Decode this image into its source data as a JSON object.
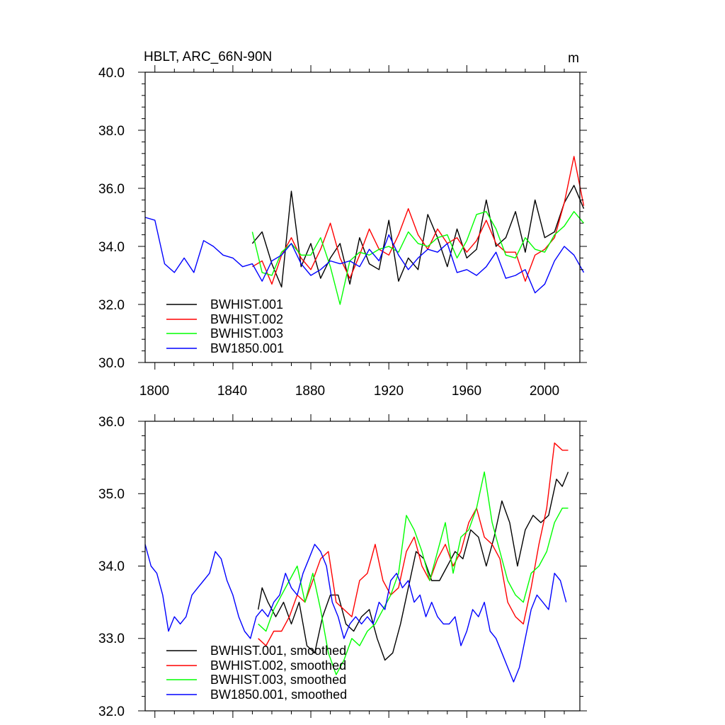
{
  "colors": {
    "BWHIST.001": "#000000",
    "BWHIST.002": "#ff0000",
    "BWHIST.003": "#00ff00",
    "BW1850.001": "#0000ff"
  },
  "chart_data": [
    {
      "type": "line",
      "title": "HBLT, ARC_66N-90N",
      "units_label": "m",
      "xlim": [
        1795,
        2018
      ],
      "ylim": [
        30,
        40
      ],
      "x_ticks": [
        1800,
        1840,
        1880,
        1920,
        1960,
        2000
      ],
      "x_tick_labels": [
        "1800",
        "1840",
        "1880",
        "1920",
        "1960",
        "2000"
      ],
      "y_ticks": [
        30,
        32,
        34,
        36,
        38,
        40
      ],
      "y_tick_labels": [
        "30.0",
        "32.0",
        "34.0",
        "36.0",
        "38.0",
        "40.0"
      ],
      "legend": [
        "BWHIST.001",
        "BWHIST.002",
        "BWHIST.003",
        "BW1850.001"
      ],
      "legend_position": "bottom-left",
      "series": [
        {
          "name": "BWHIST.001",
          "color_key": "BWHIST.001",
          "x_start": 1850,
          "x_step": 5,
          "values": [
            34.1,
            34.5,
            33.4,
            32.6,
            35.9,
            33.3,
            34.1,
            32.9,
            33.6,
            34.1,
            32.7,
            34.3,
            33.4,
            33.2,
            34.9,
            32.8,
            33.6,
            33.2,
            35.1,
            34.3,
            33.3,
            34.6,
            33.6,
            33.9,
            35.6,
            34.0,
            34.3,
            35.2,
            33.8,
            35.6,
            34.3,
            34.5,
            35.5,
            36.1,
            35.3
          ]
        },
        {
          "name": "BWHIST.002",
          "color_key": "BWHIST.002",
          "x_start": 1850,
          "x_step": 5,
          "values": [
            33.3,
            33.5,
            32.7,
            33.7,
            34.3,
            33.6,
            33.2,
            33.9,
            34.8,
            33.6,
            32.9,
            33.7,
            34.6,
            33.9,
            33.7,
            34.4,
            35.3,
            34.4,
            33.9,
            34.6,
            34.1,
            34.3,
            33.8,
            34.2,
            34.9,
            34.1,
            33.8,
            33.8,
            32.8,
            33.7,
            33.9,
            34.3,
            35.5,
            37.1,
            35.4
          ]
        },
        {
          "name": "BWHIST.003",
          "color_key": "BWHIST.003",
          "x_start": 1850,
          "x_step": 5,
          "values": [
            34.5,
            33.1,
            33.0,
            33.8,
            34.1,
            33.7,
            33.7,
            34.3,
            33.3,
            32.0,
            33.5,
            33.8,
            33.7,
            33.9,
            34.0,
            33.8,
            34.5,
            34.1,
            34.0,
            34.3,
            34.4,
            33.6,
            34.2,
            35.1,
            35.2,
            34.6,
            33.7,
            33.6,
            34.3,
            33.9,
            33.8,
            34.4,
            34.7,
            35.2,
            34.8
          ]
        },
        {
          "name": "BW1850.001",
          "color_key": "BW1850.001",
          "x_start": 1795,
          "x_step": 5,
          "values": [
            35.0,
            34.9,
            33.4,
            33.1,
            33.6,
            33.1,
            34.2,
            34.0,
            33.7,
            33.6,
            33.3,
            33.4,
            32.8,
            33.5,
            33.7,
            34.1,
            33.4,
            33.0,
            33.2,
            33.5,
            33.4,
            33.5,
            33.3,
            33.9,
            33.5,
            34.4,
            33.7,
            33.2,
            33.6,
            33.9,
            33.8,
            34.1,
            33.1,
            33.2,
            33.0,
            33.3,
            33.8,
            32.9,
            33.0,
            33.2,
            32.4,
            32.7,
            33.5,
            34.0,
            33.7,
            33.1
          ]
        }
      ]
    },
    {
      "type": "line",
      "xlim": [
        1795,
        2018
      ],
      "ylim": [
        32,
        36
      ],
      "x_ticks": [
        1800,
        1840,
        1880,
        1920,
        1960,
        2000
      ],
      "y_ticks": [
        32,
        33,
        34,
        35,
        36
      ],
      "y_tick_labels": [
        "32.0",
        "33.0",
        "34.0",
        "35.0",
        "36.0"
      ],
      "legend": [
        "BWHIST.001, smoothed",
        "BWHIST.002, smoothed",
        "BWHIST.003, smoothed",
        "BW1850.001, smoothed"
      ],
      "legend_position": "bottom-left",
      "series": [
        {
          "name": "BWHIST.001, smoothed",
          "color_key": "BWHIST.001",
          "x": [
            1853,
            1855,
            1858,
            1862,
            1866,
            1870,
            1874,
            1878,
            1882,
            1886,
            1890,
            1894,
            1898,
            1902,
            1906,
            1910,
            1914,
            1918,
            1922,
            1926,
            1930,
            1934,
            1938,
            1942,
            1946,
            1950,
            1954,
            1958,
            1962,
            1966,
            1970,
            1974,
            1978,
            1982,
            1986,
            1990,
            1994,
            1998,
            2002,
            2006,
            2009,
            2012
          ],
          "values": [
            33.4,
            33.7,
            33.5,
            33.3,
            33.5,
            33.2,
            33.5,
            32.9,
            32.8,
            33.3,
            33.6,
            33.6,
            33.2,
            33.1,
            33.3,
            33.4,
            33.0,
            32.7,
            32.8,
            33.2,
            33.7,
            34.2,
            34.1,
            33.8,
            33.8,
            34.0,
            34.2,
            34.1,
            34.5,
            34.4,
            34.0,
            34.4,
            34.9,
            34.6,
            34.0,
            34.5,
            34.7,
            34.6,
            34.7,
            35.2,
            35.1,
            35.3
          ]
        },
        {
          "name": "BWHIST.002, smoothed",
          "color_key": "BWHIST.002",
          "x": [
            1853,
            1857,
            1861,
            1865,
            1869,
            1873,
            1877,
            1881,
            1885,
            1889,
            1893,
            1897,
            1901,
            1905,
            1909,
            1913,
            1917,
            1921,
            1925,
            1929,
            1933,
            1937,
            1941,
            1945,
            1949,
            1953,
            1957,
            1961,
            1965,
            1969,
            1973,
            1977,
            1981,
            1985,
            1989,
            1993,
            1997,
            2001,
            2005,
            2009,
            2012
          ],
          "values": [
            33.0,
            32.9,
            33.1,
            33.1,
            33.3,
            33.6,
            33.5,
            33.8,
            34.1,
            34.2,
            33.5,
            33.4,
            33.3,
            33.8,
            33.9,
            34.3,
            33.8,
            33.6,
            33.7,
            34.2,
            34.4,
            34.0,
            33.8,
            34.1,
            34.3,
            34.0,
            34.2,
            34.6,
            34.8,
            34.4,
            34.3,
            34.1,
            33.5,
            33.3,
            33.2,
            33.7,
            34.3,
            34.8,
            35.7,
            35.6,
            35.6
          ]
        },
        {
          "name": "BWHIST.003, smoothed",
          "color_key": "BWHIST.003",
          "x": [
            1853,
            1857,
            1861,
            1865,
            1869,
            1873,
            1877,
            1881,
            1885,
            1889,
            1893,
            1897,
            1901,
            1905,
            1909,
            1913,
            1917,
            1921,
            1925,
            1929,
            1933,
            1937,
            1941,
            1945,
            1949,
            1953,
            1957,
            1961,
            1965,
            1969,
            1973,
            1977,
            1981,
            1985,
            1989,
            1993,
            1997,
            2001,
            2005,
            2009,
            2012
          ],
          "values": [
            33.2,
            33.1,
            33.4,
            33.6,
            33.8,
            34.0,
            33.5,
            33.9,
            33.4,
            32.8,
            32.5,
            32.7,
            33.0,
            32.9,
            33.1,
            33.2,
            33.4,
            33.6,
            33.9,
            34.7,
            34.5,
            34.2,
            33.8,
            34.2,
            34.6,
            33.9,
            34.4,
            34.5,
            34.8,
            35.3,
            34.6,
            34.2,
            33.8,
            33.6,
            33.5,
            33.9,
            34.0,
            34.2,
            34.6,
            34.8,
            34.8
          ]
        },
        {
          "name": "BW1850.001, smoothed",
          "color_key": "BW1850.001",
          "x": [
            1795,
            1798,
            1801,
            1804,
            1807,
            1810,
            1813,
            1816,
            1819,
            1822,
            1825,
            1828,
            1831,
            1834,
            1837,
            1840,
            1843,
            1846,
            1849,
            1852,
            1855,
            1858,
            1861,
            1864,
            1867,
            1870,
            1873,
            1876,
            1879,
            1882,
            1885,
            1888,
            1891,
            1894,
            1897,
            1900,
            1903,
            1906,
            1909,
            1912,
            1915,
            1918,
            1921,
            1924,
            1927,
            1930,
            1933,
            1936,
            1939,
            1942,
            1945,
            1948,
            1951,
            1954,
            1957,
            1960,
            1963,
            1966,
            1969,
            1972,
            1975,
            1978,
            1981,
            1984,
            1987,
            1990,
            1993,
            1996,
            1999,
            2002,
            2005,
            2008,
            2011
          ],
          "values": [
            34.3,
            34.0,
            33.9,
            33.6,
            33.1,
            33.3,
            33.2,
            33.3,
            33.6,
            33.7,
            33.8,
            33.9,
            34.2,
            34.1,
            33.8,
            33.6,
            33.3,
            33.1,
            33.0,
            33.3,
            33.4,
            33.3,
            33.5,
            33.6,
            33.9,
            33.7,
            33.6,
            33.9,
            34.1,
            34.3,
            34.2,
            34.0,
            33.5,
            33.3,
            33.0,
            33.2,
            33.3,
            33.2,
            33.3,
            33.2,
            33.5,
            33.4,
            33.8,
            33.9,
            33.7,
            33.8,
            33.5,
            33.6,
            33.3,
            33.5,
            33.3,
            33.2,
            33.2,
            33.3,
            32.9,
            33.1,
            33.4,
            33.3,
            33.5,
            33.1,
            33.0,
            32.8,
            32.6,
            32.4,
            32.6,
            33.0,
            33.4,
            33.6,
            33.5,
            33.4,
            33.9,
            33.8,
            33.5
          ]
        }
      ]
    }
  ]
}
